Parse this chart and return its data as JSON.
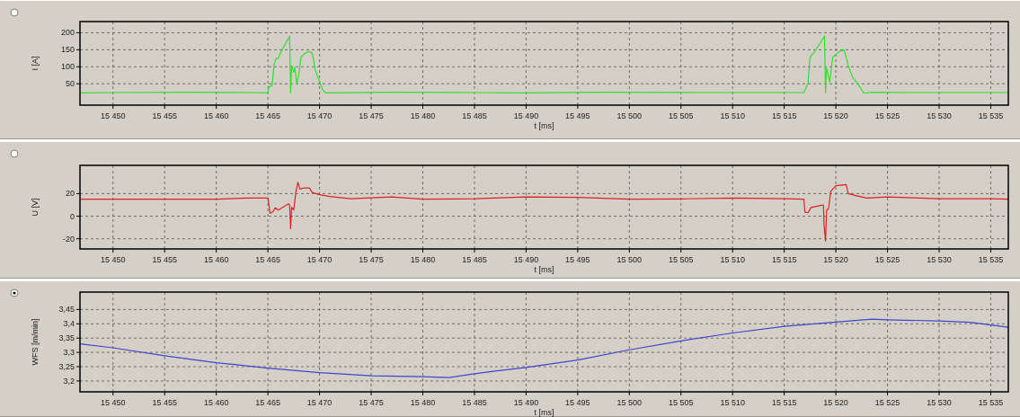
{
  "chart_data": [
    {
      "type": "line",
      "xlabel": "t [ms]",
      "ylabel": "I [A]",
      "grid": true,
      "xlim": [
        15446.8,
        15536.7
      ],
      "ylim": [
        -13,
        233
      ],
      "xticks": [
        {
          "value": 15450,
          "label": "15 450"
        },
        {
          "value": 15455,
          "label": "15 455"
        },
        {
          "value": 15460,
          "label": "15 460"
        },
        {
          "value": 15465,
          "label": "15 465"
        },
        {
          "value": 15470,
          "label": "15 470"
        },
        {
          "value": 15475,
          "label": "15 475"
        },
        {
          "value": 15480,
          "label": "15 480"
        },
        {
          "value": 15485,
          "label": "15 485"
        },
        {
          "value": 15490,
          "label": "15 490"
        },
        {
          "value": 15495,
          "label": "15 495"
        },
        {
          "value": 15500,
          "label": "15 500"
        },
        {
          "value": 15505,
          "label": "15 505"
        },
        {
          "value": 15510,
          "label": "15 510"
        },
        {
          "value": 15515,
          "label": "15 515"
        },
        {
          "value": 15520,
          "label": "15 520"
        },
        {
          "value": 15525,
          "label": "15 525"
        },
        {
          "value": 15530,
          "label": "15 530"
        },
        {
          "value": 15535,
          "label": "15 535"
        }
      ],
      "yticks": [
        50,
        100,
        150,
        200
      ],
      "series": [
        {
          "color": "#33dd33",
          "x": [
            15446.8,
            15450,
            15457,
            15463.5,
            15465,
            15465.1,
            15465.4,
            15465.6,
            15465.8,
            15466,
            15466.2,
            15467.1,
            15467.2,
            15467.3,
            15467.5,
            15467.6,
            15467.8,
            15468,
            15468.2,
            15468.6,
            15469,
            15469.3,
            15469.6,
            15470,
            15470.3,
            15470.6,
            15477,
            15485,
            15490,
            15497,
            15507,
            15514,
            15516.9,
            15517.3,
            15517.5,
            15518,
            15518.9,
            15519,
            15519.1,
            15519.4,
            15519.7,
            15520.3,
            15520.8,
            15521.2,
            15521.6,
            15522.2,
            15522.7,
            15523.5,
            15527,
            15536.7
          ],
          "values": [
            23,
            24,
            25,
            24,
            23,
            41,
            45,
            107,
            125,
            125,
            140,
            190,
            23,
            103,
            84,
            98,
            49,
            79,
            128,
            140,
            145,
            140,
            89,
            56,
            32,
            23,
            25,
            24,
            23,
            25,
            24,
            24,
            24,
            51,
            128,
            147,
            190,
            22,
            98,
            55,
            128,
            144,
            150,
            104,
            70,
            46,
            22,
            25,
            24,
            24
          ]
        }
      ]
    },
    {
      "type": "line",
      "xlabel": "t [ms]",
      "ylabel": "U [V]",
      "grid": true,
      "xlim": [
        15446.8,
        15536.7
      ],
      "ylim": [
        -29,
        45
      ],
      "xticks": [
        {
          "value": 15450,
          "label": "15 450"
        },
        {
          "value": 15455,
          "label": "15 455"
        },
        {
          "value": 15460,
          "label": "15 460"
        },
        {
          "value": 15465,
          "label": "15 465"
        },
        {
          "value": 15470,
          "label": "15 470"
        },
        {
          "value": 15475,
          "label": "15 475"
        },
        {
          "value": 15480,
          "label": "15 480"
        },
        {
          "value": 15485,
          "label": "15 485"
        },
        {
          "value": 15490,
          "label": "15 490"
        },
        {
          "value": 15495,
          "label": "15 495"
        },
        {
          "value": 15500,
          "label": "15 500"
        },
        {
          "value": 15505,
          "label": "15 505"
        },
        {
          "value": 15510,
          "label": "15 510"
        },
        {
          "value": 15515,
          "label": "15 515"
        },
        {
          "value": 15520,
          "label": "15 520"
        },
        {
          "value": 15525,
          "label": "15 525"
        },
        {
          "value": 15530,
          "label": "15 530"
        },
        {
          "value": 15535,
          "label": "15 535"
        }
      ],
      "yticks": [
        -20,
        0,
        20
      ],
      "series": [
        {
          "color": "#dd2222",
          "x": [
            15446.8,
            15450,
            15455,
            15460,
            15463,
            15465,
            15465.1,
            15465.2,
            15465.5,
            15465.7,
            15466,
            15467,
            15467.1,
            15467.2,
            15467.3,
            15467.5,
            15467.7,
            15467.9,
            15468.1,
            15468.5,
            15469,
            15469.3,
            15470,
            15471,
            15473,
            15477,
            15480,
            15485,
            15490,
            15495,
            15500,
            15505,
            15510,
            15515,
            15516.9,
            15517,
            15517.3,
            15517.6,
            15518.5,
            15518.8,
            15518.85,
            15519,
            15519.1,
            15519.3,
            15519.5,
            15520,
            15521,
            15521.2,
            15522,
            15523,
            15525,
            15530,
            15535,
            15536.7
          ],
          "values": [
            15,
            15,
            15,
            15,
            16,
            16,
            9.7,
            2.6,
            4,
            7.4,
            5.4,
            11,
            9.7,
            -11,
            8,
            5.4,
            21,
            30,
            24,
            25,
            25,
            21,
            19,
            17.4,
            15.4,
            17,
            15,
            15.4,
            17,
            16.6,
            15,
            15.3,
            16,
            15.4,
            15,
            3.7,
            3,
            7.7,
            9.5,
            10,
            -7,
            -22,
            5,
            7,
            22,
            27,
            28,
            20,
            18,
            16,
            17,
            15.5,
            15.4,
            15
          ]
        }
      ]
    },
    {
      "type": "line",
      "xlabel": "t [ms]",
      "ylabel": "WFS [m/min]",
      "grid": true,
      "xlim": [
        15446.8,
        15536.7
      ],
      "ylim": [
        3.162,
        3.511
      ],
      "xticks": [
        {
          "value": 15450,
          "label": "15 450"
        },
        {
          "value": 15455,
          "label": "15 455"
        },
        {
          "value": 15460,
          "label": "15 460"
        },
        {
          "value": 15465,
          "label": "15 465"
        },
        {
          "value": 15470,
          "label": "15 470"
        },
        {
          "value": 15475,
          "label": "15 475"
        },
        {
          "value": 15480,
          "label": "15 480"
        },
        {
          "value": 15485,
          "label": "15 485"
        },
        {
          "value": 15490,
          "label": "15 490"
        },
        {
          "value": 15495,
          "label": "15 495"
        },
        {
          "value": 15500,
          "label": "15 500"
        },
        {
          "value": 15505,
          "label": "15 505"
        },
        {
          "value": 15510,
          "label": "15 510"
        },
        {
          "value": 15515,
          "label": "15 515"
        },
        {
          "value": 15520,
          "label": "15 520"
        },
        {
          "value": 15525,
          "label": "15 525"
        },
        {
          "value": 15530,
          "label": "15 530"
        },
        {
          "value": 15535,
          "label": "15 535"
        }
      ],
      "yticks": [
        {
          "value": 3.2,
          "label": "3,2"
        },
        {
          "value": 3.25,
          "label": "3,25"
        },
        {
          "value": 3.3,
          "label": "3,3"
        },
        {
          "value": 3.35,
          "label": "3,35"
        },
        {
          "value": 3.4,
          "label": "3,4"
        },
        {
          "value": 3.45,
          "label": "3,45"
        }
      ],
      "series": [
        {
          "color": "#4444cc",
          "x": [
            15446.8,
            15450,
            15455,
            15460,
            15465,
            15470,
            15475,
            15480,
            15482.5,
            15485,
            15487,
            15490,
            15495,
            15500,
            15505,
            15510,
            15515,
            15520,
            15523.5,
            15525,
            15530,
            15533,
            15536.7
          ],
          "values": [
            3.33,
            3.316,
            3.288,
            3.264,
            3.245,
            3.229,
            3.218,
            3.215,
            3.212,
            3.225,
            3.235,
            3.247,
            3.273,
            3.309,
            3.34,
            3.368,
            3.391,
            3.406,
            3.416,
            3.414,
            3.41,
            3.405,
            3.388
          ]
        }
      ]
    }
  ]
}
